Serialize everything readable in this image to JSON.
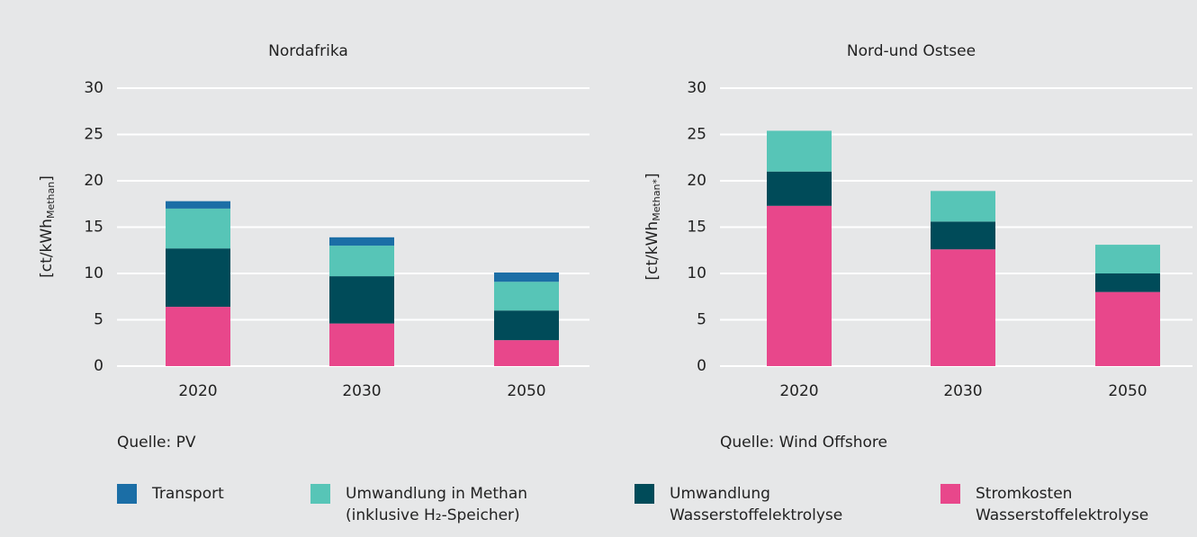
{
  "chart_data": [
    {
      "type": "bar",
      "stacked": true,
      "title": "Nordafrika",
      "ylabel": "[ct/kWh",
      "ylabel_sub": "Methan",
      "ylabel_end": "]",
      "categories": [
        "2020",
        "2030",
        "2050"
      ],
      "ylim": [
        0,
        30
      ],
      "yticks": [
        0,
        5,
        10,
        15,
        20,
        25,
        30
      ],
      "grid": true,
      "source": "Quelle: PV",
      "series": [
        {
          "name": "Transport",
          "color": "#1b6ea6",
          "values": [
            0.8,
            0.9,
            1.0
          ]
        },
        {
          "name": "Umwandlung in Methan\n(inklusive H₂-Speicher)",
          "color": "#57c5b7",
          "values": [
            4.3,
            3.3,
            3.1
          ]
        },
        {
          "name": "Umwandlung\nWasserstoffelektrolyse",
          "color": "#004b59",
          "values": [
            6.3,
            5.1,
            3.2
          ]
        },
        {
          "name": "Stromkosten\nWasserstoffelektrolyse",
          "color": "#e8478b",
          "values": [
            6.4,
            4.6,
            2.8
          ]
        }
      ]
    },
    {
      "type": "bar",
      "stacked": true,
      "title": "Nord-und Ostsee",
      "ylabel": "[ct/kWh",
      "ylabel_sub": "Methan*",
      "ylabel_end": "]",
      "categories": [
        "2020",
        "2030",
        "2050"
      ],
      "ylim": [
        0,
        30
      ],
      "yticks": [
        0,
        5,
        10,
        15,
        20,
        25,
        30
      ],
      "grid": true,
      "source": "Quelle: Wind Offshore",
      "series": [
        {
          "color": "#57c5b7",
          "values": [
            4.4,
            3.3,
            3.1
          ]
        },
        {
          "color": "#004b59",
          "values": [
            3.7,
            3.0,
            2.0
          ]
        },
        {
          "color": "#e8478b",
          "values": [
            17.3,
            12.6,
            8.0
          ]
        }
      ]
    }
  ]
}
